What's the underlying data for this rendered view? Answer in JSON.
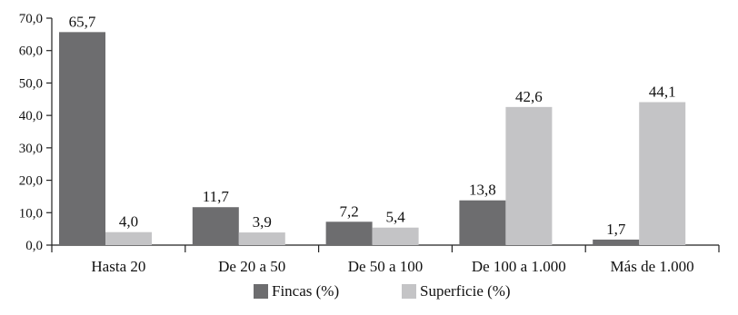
{
  "chart_data": {
    "type": "bar",
    "categories": [
      "Hasta 20",
      "De 20 a 50",
      "De 50 a 100",
      "De 100 a 1.000",
      "Más de 1.000"
    ],
    "series": [
      {
        "name": "Fincas (%)",
        "values": [
          65.7,
          11.7,
          7.2,
          13.8,
          1.7
        ],
        "labels": [
          "65,7",
          "11,7",
          "7,2",
          "13,8",
          "1,7"
        ],
        "color": "#6d6d6f"
      },
      {
        "name": "Superficie (%)",
        "values": [
          4.0,
          3.9,
          5.4,
          42.6,
          44.1
        ],
        "labels": [
          "4,0",
          "3,9",
          "5,4",
          "42,6",
          "44,1"
        ],
        "color": "#c4c4c6"
      }
    ],
    "y_ticks": [
      0,
      10,
      20,
      30,
      40,
      50,
      60,
      70
    ],
    "y_tick_labels": [
      "0,0",
      "10,0",
      "20,0",
      "30,0",
      "40,0",
      "50,0",
      "60,0",
      "70,0"
    ],
    "ylim": [
      0,
      70
    ],
    "grid": false,
    "legend_position": "bottom-center",
    "title": "",
    "xlabel": "",
    "ylabel": ""
  }
}
